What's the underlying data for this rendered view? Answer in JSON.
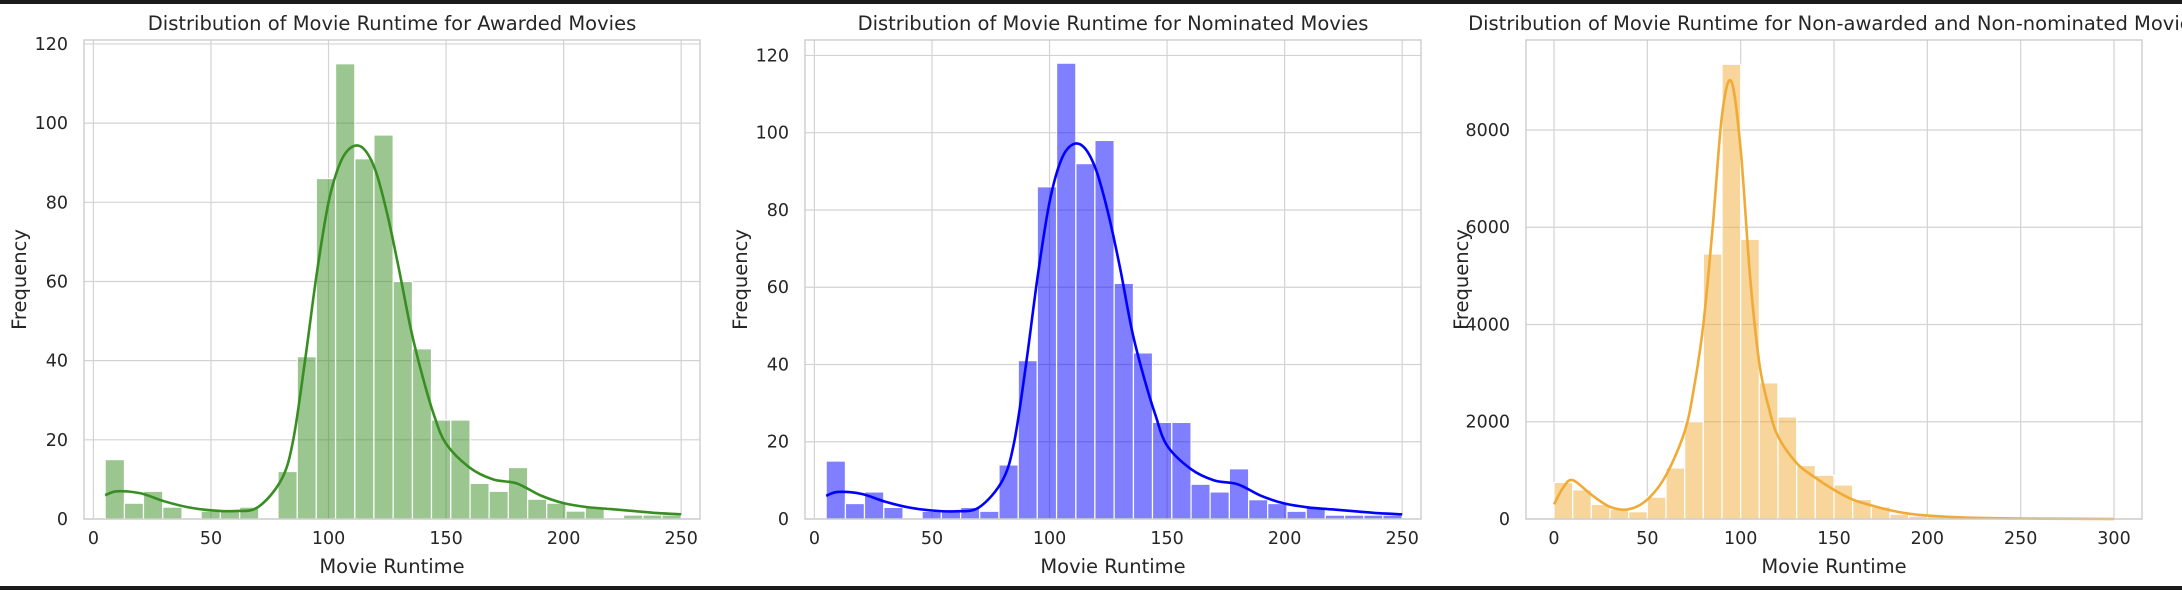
{
  "chart_data": [
    {
      "type": "bar",
      "title": "Distribution of Movie Runtime for Awarded Movies",
      "xlabel": "Movie Runtime",
      "ylabel": "Frequency",
      "color": "#388e22",
      "xlim": [
        -4,
        258
      ],
      "ylim": [
        0,
        121
      ],
      "xticks": [
        0,
        50,
        100,
        150,
        200,
        250
      ],
      "yticks": [
        0,
        20,
        40,
        60,
        80,
        100,
        120
      ],
      "grid": true,
      "bin_edges": [
        5,
        13.2,
        21.3,
        29.5,
        37.7,
        45.8,
        54,
        62.2,
        70.3,
        78.5,
        86.7,
        94.8,
        103,
        111.2,
        119.3,
        127.5,
        135.7,
        143.8,
        152,
        160.2,
        168.3,
        176.5,
        184.7,
        192.8,
        201,
        209.2,
        217.3,
        225.5,
        233.7,
        241.8,
        250
      ],
      "values": [
        15,
        4,
        7,
        3,
        0,
        2,
        2,
        3,
        0,
        12,
        41,
        86,
        115,
        91,
        97,
        60,
        43,
        25,
        25,
        9,
        7,
        13,
        5,
        4,
        2,
        3,
        0,
        1,
        1,
        1
      ],
      "kde": {
        "x": [
          5,
          10,
          20,
          30,
          40,
          50,
          60,
          70,
          80,
          85,
          90,
          95,
          100,
          105,
          110,
          115,
          120,
          125,
          130,
          135,
          140,
          145,
          150,
          160,
          170,
          180,
          190,
          200,
          210,
          220,
          230,
          240,
          250
        ],
        "y": [
          6,
          7,
          6.5,
          4.5,
          3,
          2.2,
          2,
          3,
          10,
          20,
          40,
          62,
          80,
          90,
          94,
          93.5,
          88,
          77,
          63,
          48,
          36,
          26,
          19,
          13,
          10,
          9,
          6,
          4,
          3,
          2.5,
          2,
          1.5,
          1.2
        ]
      }
    },
    {
      "type": "bar",
      "title": "Distribution of Movie Runtime for Nominated Movies",
      "xlabel": "Movie Runtime",
      "ylabel": "Frequency",
      "color": "#0000ff",
      "xlim": [
        -4,
        258
      ],
      "ylim": [
        0,
        124
      ],
      "xticks": [
        0,
        50,
        100,
        150,
        200,
        250
      ],
      "yticks": [
        0,
        20,
        40,
        60,
        80,
        100,
        120
      ],
      "grid": true,
      "bin_edges": [
        5,
        13.2,
        21.3,
        29.5,
        37.7,
        45.8,
        54,
        62.2,
        70.3,
        78.5,
        86.7,
        94.8,
        103,
        111.2,
        119.3,
        127.5,
        135.7,
        143.8,
        152,
        160.2,
        168.3,
        176.5,
        184.7,
        192.8,
        201,
        209.2,
        217.3,
        225.5,
        233.7,
        241.8,
        250
      ],
      "values": [
        15,
        4,
        7,
        3,
        0,
        2,
        2,
        3,
        2,
        14,
        41,
        86,
        118,
        92,
        98,
        61,
        43,
        25,
        25,
        9,
        7,
        13,
        5,
        4,
        2,
        3,
        1,
        1,
        1,
        1
      ],
      "kde": {
        "x": [
          5,
          10,
          20,
          30,
          40,
          50,
          60,
          70,
          80,
          85,
          90,
          95,
          100,
          105,
          110,
          115,
          120,
          125,
          130,
          135,
          140,
          145,
          150,
          160,
          170,
          180,
          190,
          200,
          210,
          220,
          230,
          240,
          250
        ],
        "y": [
          6,
          7,
          6.5,
          4.5,
          3,
          2.2,
          2,
          3,
          10,
          20,
          40,
          63,
          82,
          93,
          97,
          96,
          90,
          79,
          65,
          49,
          37,
          27,
          19,
          13,
          10,
          9,
          6,
          4,
          3,
          2.5,
          2,
          1.5,
          1.2
        ]
      }
    },
    {
      "type": "bar",
      "title": "Distribution of Movie Runtime for Non-awarded and Non-nominated Movies",
      "xlabel": "Movie Runtime",
      "ylabel": "Frequency",
      "color": "#f0ab37",
      "xlim": [
        -15,
        315
      ],
      "ylim": [
        0,
        9850
      ],
      "xticks": [
        0,
        50,
        100,
        150,
        200,
        250,
        300
      ],
      "yticks": [
        0,
        2000,
        4000,
        6000,
        8000
      ],
      "grid": true,
      "bin_edges": [
        0,
        10,
        20,
        30,
        40,
        50,
        60,
        70,
        80,
        90,
        100,
        110,
        120,
        130,
        140,
        150,
        160,
        170,
        180,
        190,
        200,
        210,
        220,
        230,
        240,
        250,
        260,
        270,
        280,
        290,
        300
      ],
      "values": [
        750,
        600,
        300,
        200,
        150,
        450,
        1050,
        2000,
        5450,
        9350,
        5750,
        2800,
        2100,
        1100,
        900,
        700,
        400,
        250,
        100,
        60,
        50,
        40,
        30,
        20,
        15,
        10,
        8,
        6,
        4,
        2
      ],
      "kde": {
        "x": [
          0,
          5,
          10,
          20,
          30,
          40,
          50,
          60,
          70,
          75,
          80,
          85,
          90,
          95,
          100,
          105,
          110,
          115,
          120,
          130,
          140,
          150,
          160,
          170,
          180,
          190,
          200,
          220,
          250,
          280,
          300
        ],
        "y": [
          300,
          650,
          800,
          500,
          250,
          200,
          400,
          900,
          1800,
          2700,
          4000,
          6000,
          8300,
          9000,
          7600,
          5000,
          3200,
          2300,
          1700,
          1150,
          850,
          600,
          400,
          280,
          180,
          110,
          70,
          30,
          10,
          3,
          0
        ]
      }
    }
  ]
}
